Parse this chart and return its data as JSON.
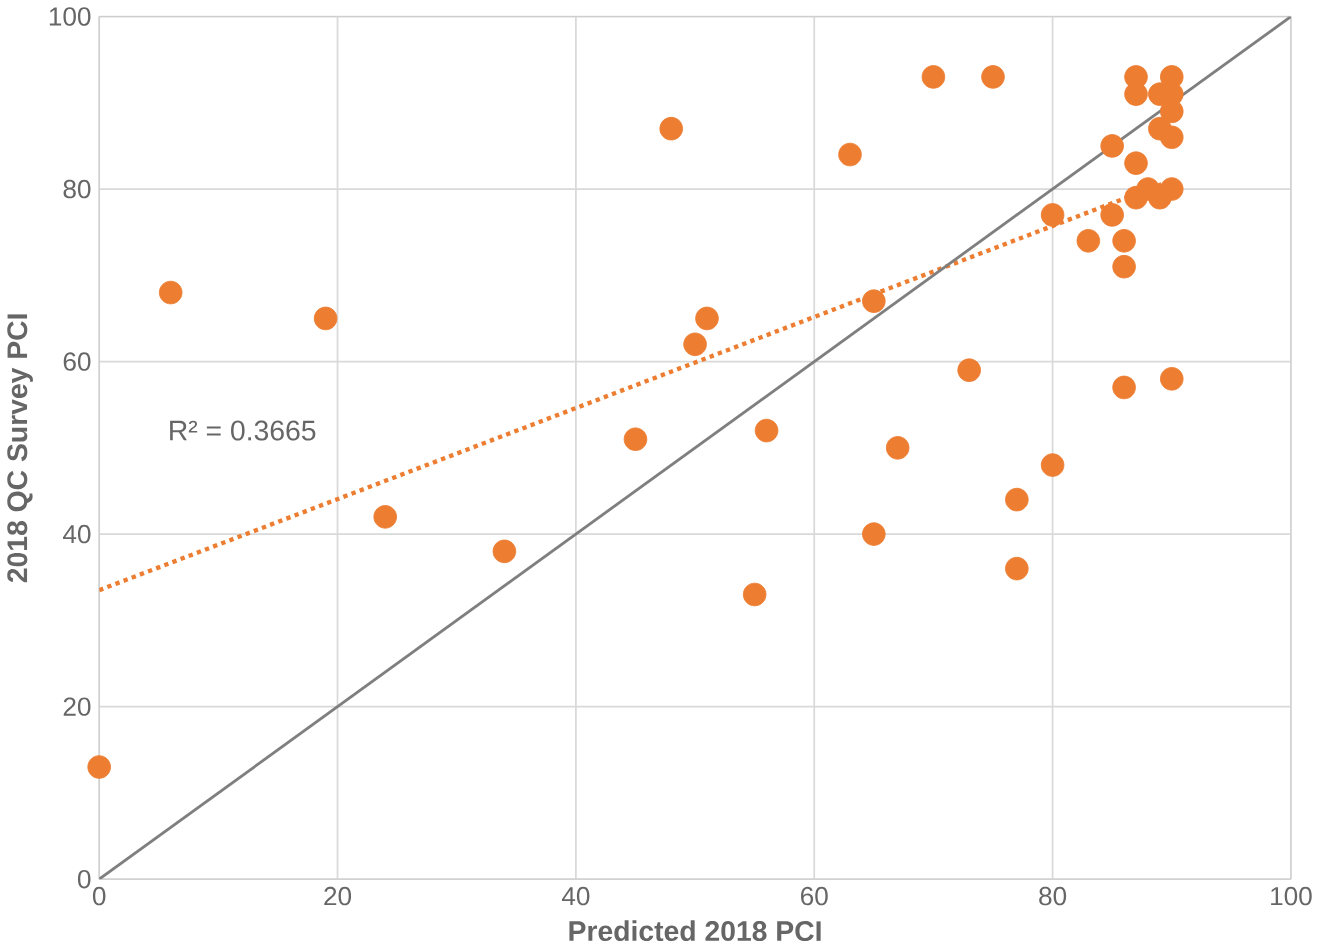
{
  "chart_data": {
    "type": "scatter",
    "xlabel": "Predicted 2018 PCI",
    "ylabel": "2018 QC Survey PCI",
    "xlim": [
      0,
      100
    ],
    "ylim": [
      0,
      100
    ],
    "xticks": [
      0,
      20,
      40,
      60,
      80,
      100
    ],
    "yticks": [
      0,
      20,
      40,
      60,
      80,
      100
    ],
    "grid": true,
    "series": [
      {
        "color": "#ed7d31",
        "marker": "circle",
        "x": [
          0,
          6,
          19,
          24,
          34,
          45,
          48,
          50,
          51,
          55,
          56,
          63,
          65,
          65,
          67,
          70,
          73,
          75,
          77,
          77,
          80,
          80,
          83,
          85,
          85,
          86,
          86,
          86,
          87,
          87,
          87,
          87,
          88,
          89,
          89,
          89,
          90,
          90,
          90,
          90,
          90,
          90
        ],
        "values": [
          13,
          68,
          65,
          42,
          38,
          51,
          87,
          62,
          65,
          33,
          52,
          84,
          67,
          40,
          50,
          93,
          59,
          93,
          44,
          36,
          48,
          77,
          74,
          85,
          77,
          74,
          71,
          57,
          93,
          91,
          83,
          79,
          80,
          91,
          87,
          79,
          93,
          91,
          89,
          86,
          80,
          58
        ]
      },
      {
        "type": "line",
        "color": "#ed7d31",
        "line_style": "dotted",
        "marker": "none",
        "x": [
          0,
          90
        ],
        "values": [
          33.5,
          81
        ]
      },
      {
        "type": "line",
        "color": "#7f7f7f",
        "line_style": "solid",
        "marker": "none",
        "x": [
          0,
          100
        ],
        "values": [
          0,
          100
        ]
      }
    ],
    "annotations": [
      "R² = 0.3665"
    ]
  }
}
